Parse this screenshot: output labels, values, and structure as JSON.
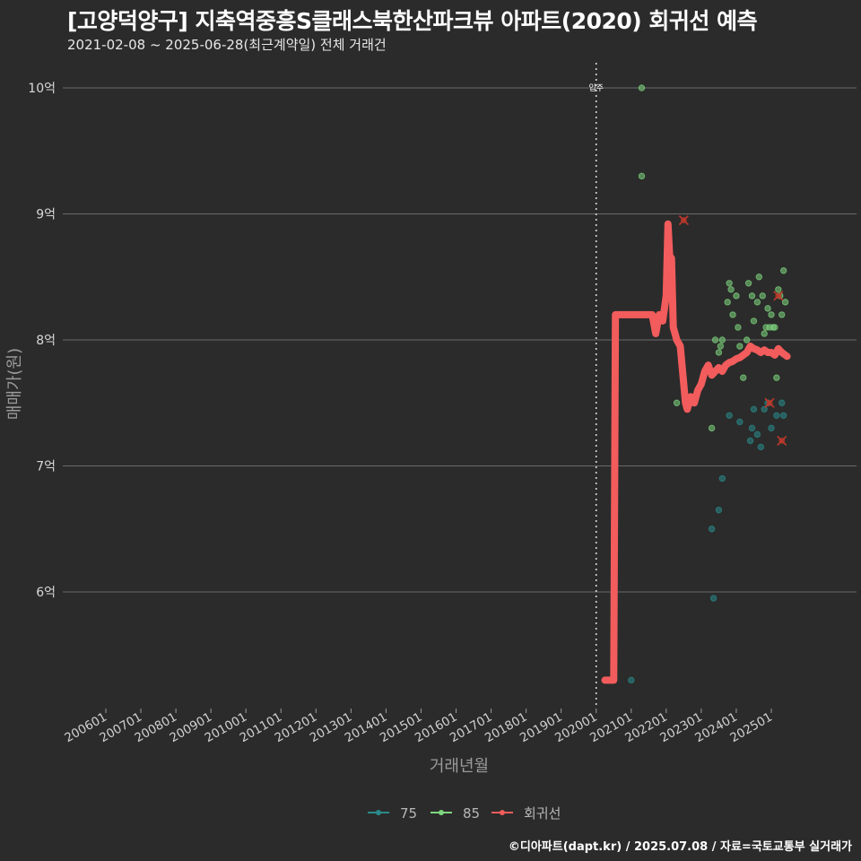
{
  "title": "[고양덕양구] 지축역중흥S클래스북한산파크뷰 아파트(2020) 회귀선 예측",
  "subtitle": "2021-02-08 ~ 2025-06-28(최근계약일) 전체 거래건",
  "footer": "©디아파트(dapt.kr) / 2025.07.08 / 자료=국토교통부 실거래가",
  "colors": {
    "background": "#2b2b2b",
    "panel": "#2b2b2b",
    "grid": "#6a6a6a",
    "series_75": "#2a8a8a",
    "series_85": "#7ed67e",
    "regression": "#f25c5c",
    "cancel_mark": "#c0392b"
  },
  "chart_data": {
    "type": "scatter",
    "title": "[고양덕양구] 지축역중흥S클래스북한산파크뷰 아파트(2020) 회귀선 예측",
    "xlabel": "거래년월",
    "ylabel": "매매가(원)",
    "x_range": [
      2006.0,
      2025.5
    ],
    "y_range": [
      5.1,
      10.2
    ],
    "y_ticks": [
      6,
      7,
      8,
      9,
      10
    ],
    "y_tick_labels": [
      "6억",
      "7억",
      "8억",
      "9억",
      "10억"
    ],
    "x_ticks": [
      2006,
      2007,
      2008,
      2009,
      2010,
      2011,
      2012,
      2013,
      2014,
      2015,
      2016,
      2017,
      2018,
      2019,
      2020,
      2021,
      2022,
      2023,
      2024,
      2025
    ],
    "x_tick_labels": [
      "200601",
      "200701",
      "200801",
      "200901",
      "201001",
      "201101",
      "201201",
      "201301",
      "201401",
      "201501",
      "201601",
      "201701",
      "201801",
      "201901",
      "202001",
      "202101",
      "202201",
      "202301",
      "202401",
      "202501"
    ],
    "move_in": {
      "x": 2020.0,
      "label": "입주"
    },
    "legend": [
      {
        "name": "75",
        "key": "series_75"
      },
      {
        "name": "85",
        "key": "series_85"
      },
      {
        "name": "회귀선",
        "key": "regression"
      }
    ],
    "series": [
      {
        "name": "75",
        "points": [
          [
            2021.0,
            5.3
          ],
          [
            2023.3,
            6.5
          ],
          [
            2023.35,
            5.95
          ],
          [
            2023.5,
            6.65
          ],
          [
            2023.6,
            6.9
          ],
          [
            2023.8,
            7.4
          ],
          [
            2024.1,
            7.35
          ],
          [
            2024.4,
            7.2
          ],
          [
            2024.45,
            7.3
          ],
          [
            2024.5,
            7.45
          ],
          [
            2024.6,
            7.25
          ],
          [
            2024.7,
            7.15
          ],
          [
            2024.8,
            7.45
          ],
          [
            2024.9,
            7.5
          ],
          [
            2025.0,
            7.3
          ],
          [
            2025.15,
            7.4
          ],
          [
            2025.3,
            7.5
          ],
          [
            2025.35,
            7.4
          ]
        ]
      },
      {
        "name": "85",
        "points": [
          [
            2021.3,
            10.0
          ],
          [
            2021.3,
            9.3
          ],
          [
            2022.3,
            7.5
          ],
          [
            2023.3,
            7.3
          ],
          [
            2023.4,
            8.0
          ],
          [
            2023.5,
            7.9
          ],
          [
            2023.55,
            7.95
          ],
          [
            2023.6,
            8.0
          ],
          [
            2023.75,
            8.3
          ],
          [
            2023.8,
            8.45
          ],
          [
            2023.85,
            8.4
          ],
          [
            2023.9,
            8.2
          ],
          [
            2024.0,
            8.35
          ],
          [
            2024.05,
            8.1
          ],
          [
            2024.1,
            7.95
          ],
          [
            2024.2,
            7.7
          ],
          [
            2024.3,
            8.0
          ],
          [
            2024.35,
            8.45
          ],
          [
            2024.45,
            8.35
          ],
          [
            2024.5,
            8.15
          ],
          [
            2024.6,
            8.3
          ],
          [
            2024.65,
            8.5
          ],
          [
            2024.75,
            8.35
          ],
          [
            2024.8,
            8.05
          ],
          [
            2024.85,
            8.1
          ],
          [
            2024.9,
            8.25
          ],
          [
            2024.95,
            8.1
          ],
          [
            2025.0,
            8.2
          ],
          [
            2025.05,
            8.1
          ],
          [
            2025.1,
            8.1
          ],
          [
            2025.15,
            7.7
          ],
          [
            2025.2,
            8.4
          ],
          [
            2025.25,
            8.35
          ],
          [
            2025.3,
            8.2
          ],
          [
            2025.35,
            8.55
          ],
          [
            2025.4,
            8.3
          ]
        ]
      }
    ],
    "cancelled": [
      [
        2022.5,
        8.95
      ],
      [
        2024.95,
        7.5
      ],
      [
        2025.2,
        8.35
      ],
      [
        2025.3,
        7.2
      ]
    ],
    "regression_line": [
      [
        2020.25,
        5.3
      ],
      [
        2020.5,
        5.3
      ],
      [
        2020.55,
        8.2
      ],
      [
        2021.0,
        8.2
      ],
      [
        2021.5,
        8.2
      ],
      [
        2021.6,
        8.2
      ],
      [
        2021.7,
        8.05
      ],
      [
        2021.8,
        8.2
      ],
      [
        2021.9,
        8.15
      ],
      [
        2022.0,
        8.35
      ],
      [
        2022.05,
        8.92
      ],
      [
        2022.12,
        8.55
      ],
      [
        2022.15,
        8.65
      ],
      [
        2022.2,
        8.1
      ],
      [
        2022.3,
        8.0
      ],
      [
        2022.4,
        7.95
      ],
      [
        2022.55,
        7.5
      ],
      [
        2022.6,
        7.45
      ],
      [
        2022.7,
        7.55
      ],
      [
        2022.8,
        7.5
      ],
      [
        2022.9,
        7.6
      ],
      [
        2023.0,
        7.65
      ],
      [
        2023.1,
        7.75
      ],
      [
        2023.2,
        7.8
      ],
      [
        2023.3,
        7.72
      ],
      [
        2023.4,
        7.75
      ],
      [
        2023.5,
        7.78
      ],
      [
        2023.6,
        7.75
      ],
      [
        2023.7,
        7.8
      ],
      [
        2023.8,
        7.82
      ],
      [
        2023.9,
        7.83
      ],
      [
        2024.0,
        7.85
      ],
      [
        2024.1,
        7.86
      ],
      [
        2024.2,
        7.88
      ],
      [
        2024.3,
        7.9
      ],
      [
        2024.4,
        7.95
      ],
      [
        2024.5,
        7.93
      ],
      [
        2024.6,
        7.92
      ],
      [
        2024.7,
        7.9
      ],
      [
        2024.8,
        7.92
      ],
      [
        2024.9,
        7.9
      ],
      [
        2025.0,
        7.9
      ],
      [
        2025.1,
        7.88
      ],
      [
        2025.2,
        7.93
      ],
      [
        2025.3,
        7.9
      ],
      [
        2025.4,
        7.88
      ],
      [
        2025.45,
        7.87
      ]
    ]
  }
}
